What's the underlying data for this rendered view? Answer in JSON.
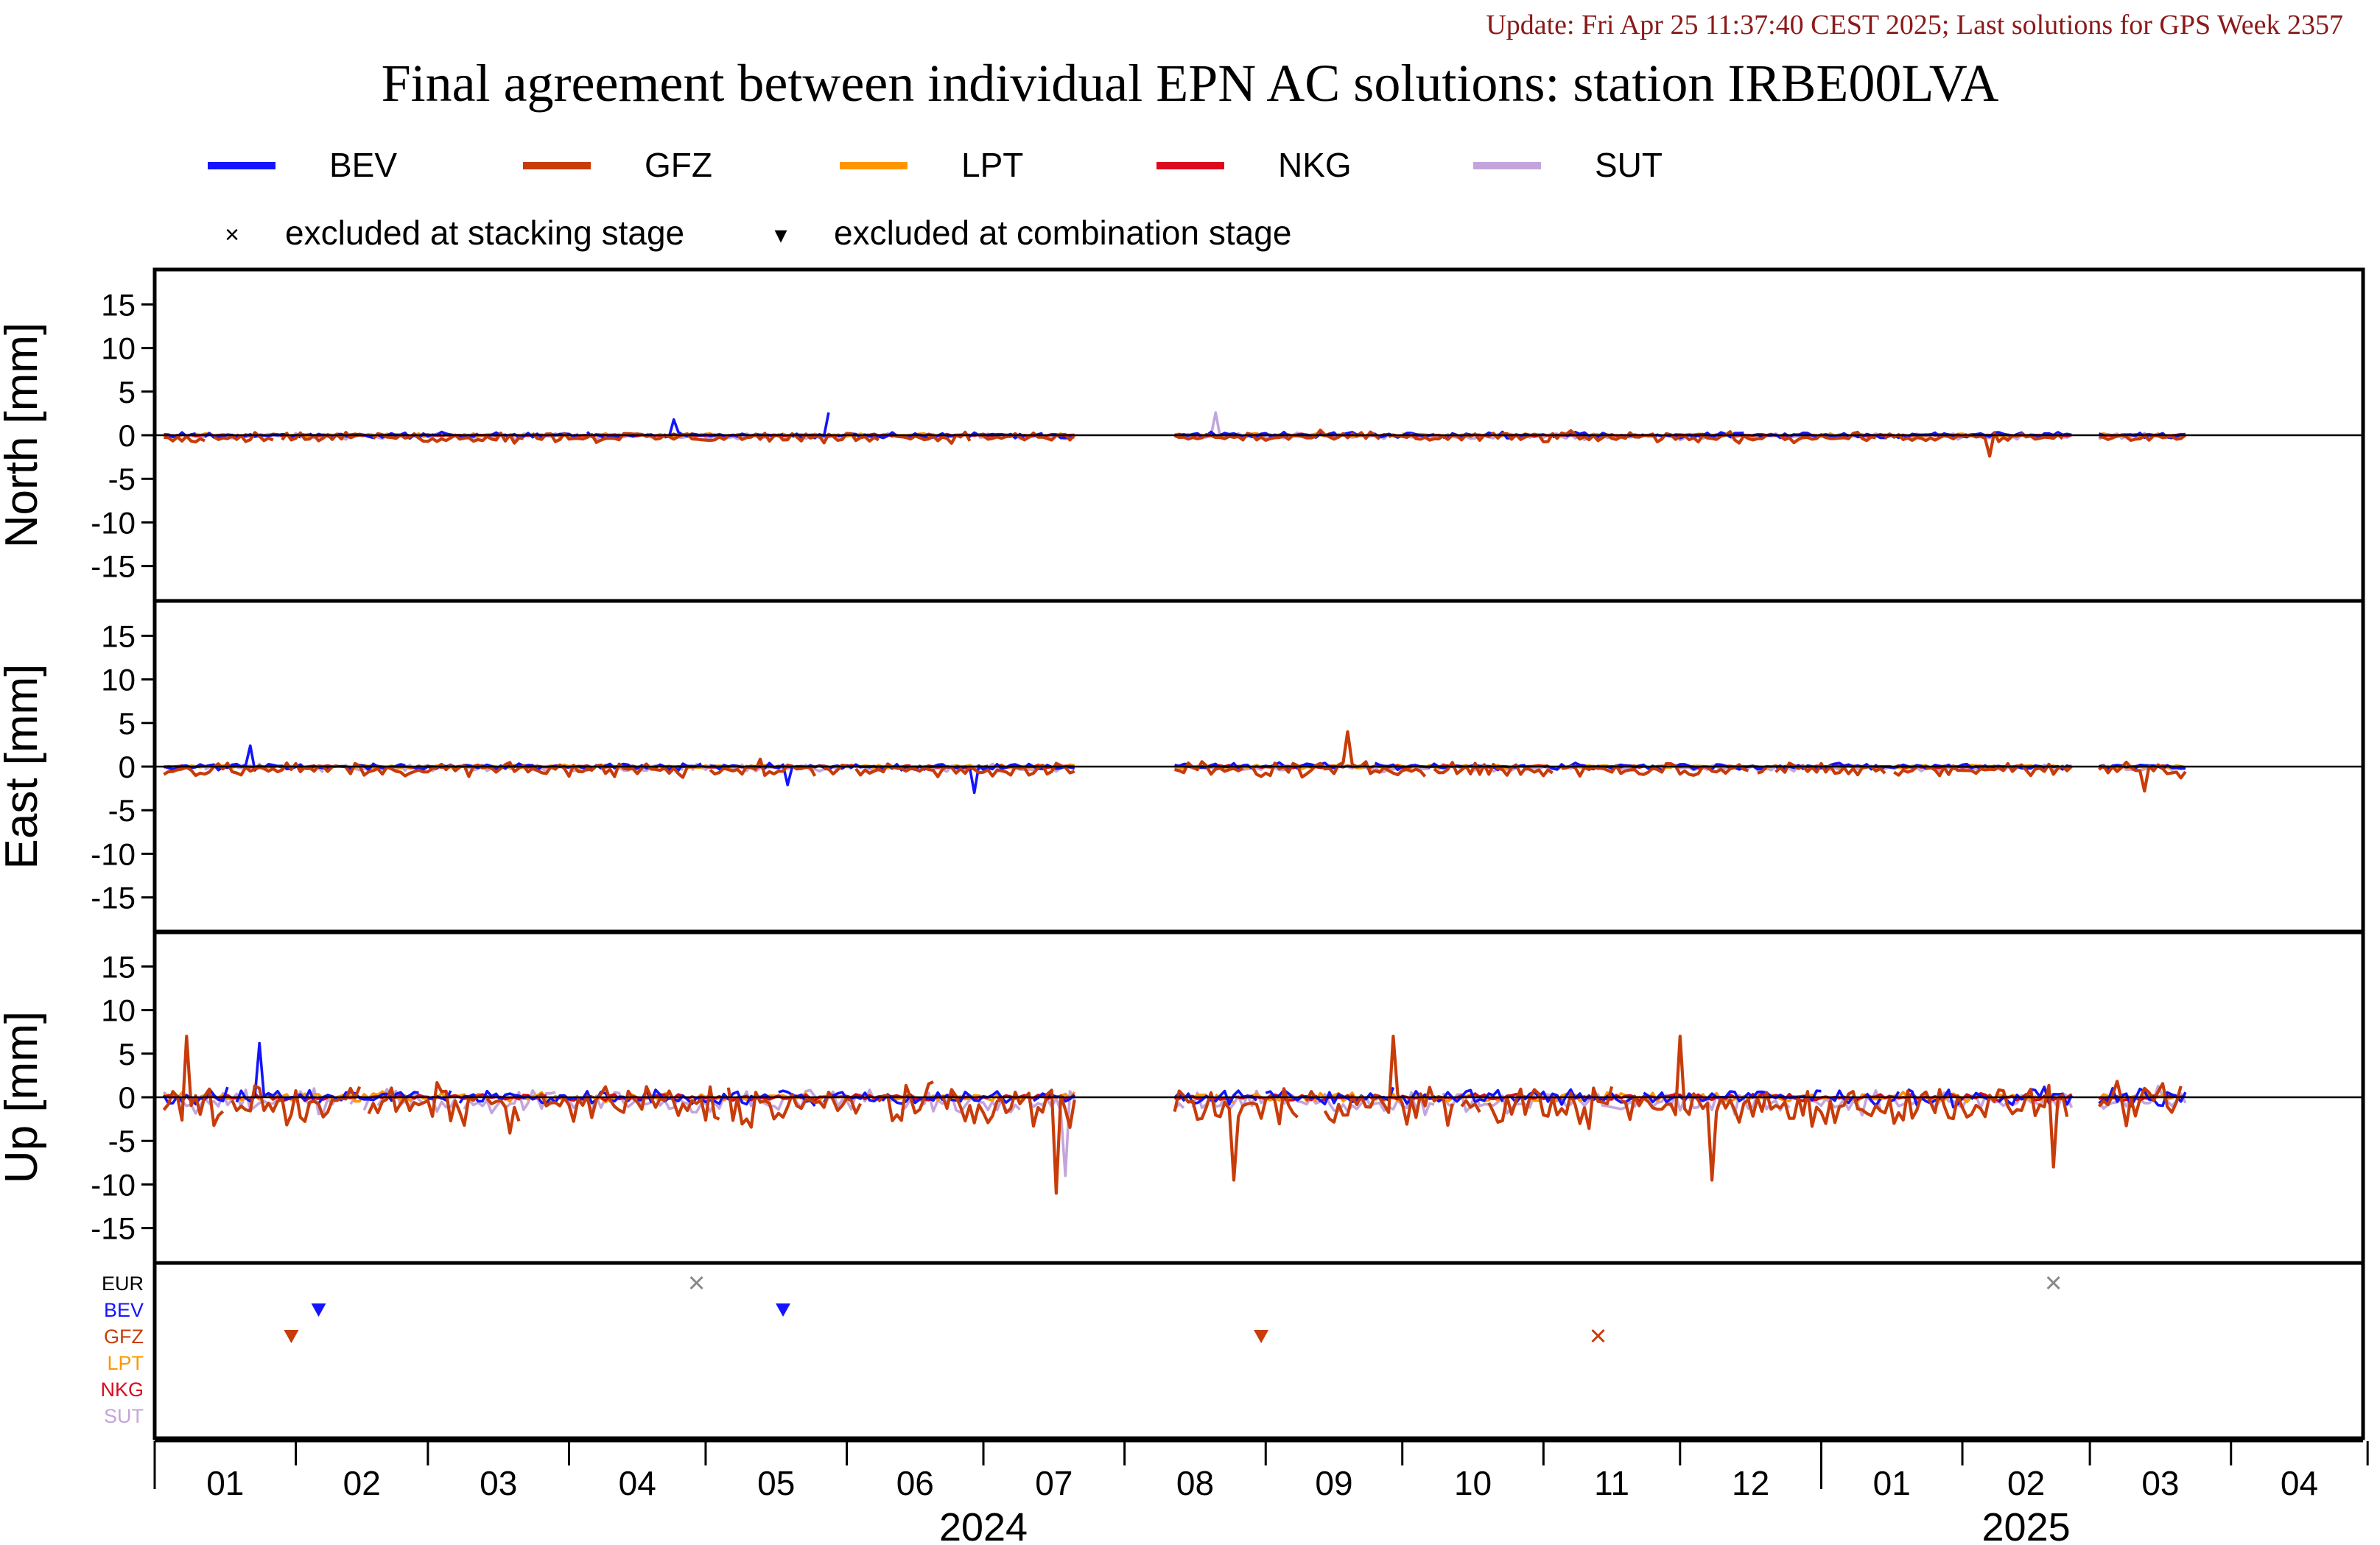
{
  "header": {
    "update_text": "Update: Fri Apr 25 11:37:40 CEST 2025; Last solutions for GPS Week 2357",
    "title": "Final agreement between individual EPN AC solutions: station IRBE00LVA"
  },
  "legend": {
    "series": [
      {
        "name": "BEV",
        "color": "#1414ff"
      },
      {
        "name": "GFZ",
        "color": "#c83c0a"
      },
      {
        "name": "LPT",
        "color": "#ff9600"
      },
      {
        "name": "NKG",
        "color": "#dc0a1e"
      },
      {
        "name": "SUT",
        "color": "#c3a5dc"
      }
    ],
    "markers": [
      {
        "symbol": "×",
        "label": "excluded at stacking stage"
      },
      {
        "symbol": "▾",
        "label": "excluded at combination stage"
      }
    ]
  },
  "chart_data": {
    "type": "line",
    "x_axis": {
      "start": "2024-01-01",
      "end": "2025-04-30",
      "month_labels": [
        "01",
        "02",
        "03",
        "04",
        "05",
        "06",
        "07",
        "08",
        "09",
        "10",
        "11",
        "12",
        "01",
        "02",
        "03",
        "04"
      ],
      "year_labels": [
        {
          "label": "2024",
          "at": "2024-07-01"
        },
        {
          "label": "2025",
          "at": "2025-02-15"
        }
      ]
    },
    "data_gap": [
      "2024-07-21",
      "2024-08-12"
    ],
    "panels": [
      {
        "ylabel": "North [mm]",
        "ylim": [
          -19,
          19
        ],
        "yticks": [
          15,
          10,
          5,
          0,
          -5,
          -10,
          -15
        ],
        "amp": {
          "BEV": 0.5,
          "GFZ": 0.9,
          "LPT": 0.3,
          "NKG": 0.2,
          "SUT": 0.5
        },
        "spikes": [
          {
            "series": "BEV",
            "date": "2024-04-24",
            "value": 1.8
          },
          {
            "series": "BEV",
            "date": "2024-05-28",
            "value": 2.6
          },
          {
            "series": "SUT",
            "date": "2024-08-21",
            "value": 2.6
          },
          {
            "series": "GFZ",
            "date": "2025-02-07",
            "value": -2.4
          }
        ]
      },
      {
        "ylabel": "East [mm]",
        "ylim": [
          -19,
          19
        ],
        "yticks": [
          15,
          10,
          5,
          0,
          -5,
          -10,
          -15
        ],
        "amp": {
          "BEV": 0.6,
          "GFZ": 1.3,
          "LPT": 0.3,
          "NKG": 0.2,
          "SUT": 0.6
        },
        "spikes": [
          {
            "series": "BEV",
            "date": "2024-01-22",
            "value": 2.4
          },
          {
            "series": "BEV",
            "date": "2024-05-19",
            "value": -2.1
          },
          {
            "series": "BEV",
            "date": "2024-06-29",
            "value": -3.0
          },
          {
            "series": "GFZ",
            "date": "2024-09-19",
            "value": 4.0
          },
          {
            "series": "GFZ",
            "date": "2025-03-13",
            "value": -2.8
          }
        ]
      },
      {
        "ylabel": "Up [mm]",
        "ylim": [
          -19,
          19
        ],
        "yticks": [
          15,
          10,
          5,
          0,
          -5,
          -10,
          -15
        ],
        "amp": {
          "BEV": 1.4,
          "GFZ": 3.6,
          "LPT": 0.8,
          "NKG": 0.6,
          "SUT": 2.0
        },
        "spikes": [
          {
            "series": "GFZ",
            "date": "2024-01-08",
            "value": 7.0
          },
          {
            "series": "BEV",
            "date": "2024-01-24",
            "value": 6.2
          },
          {
            "series": "GFZ",
            "date": "2024-07-17",
            "value": -11.0
          },
          {
            "series": "SUT",
            "date": "2024-07-19",
            "value": -9.0
          },
          {
            "series": "GFZ",
            "date": "2024-08-25",
            "value": -9.5
          },
          {
            "series": "GFZ",
            "date": "2024-09-29",
            "value": 7.0
          },
          {
            "series": "GFZ",
            "date": "2024-12-01",
            "value": 7.0
          },
          {
            "series": "GFZ",
            "date": "2024-12-08",
            "value": -9.5
          },
          {
            "series": "GFZ",
            "date": "2025-02-21",
            "value": -8.0
          }
        ]
      }
    ],
    "exclusions": {
      "rows": [
        {
          "name": "EUR",
          "color": "#000000"
        },
        {
          "name": "BEV",
          "color": "#1414ff"
        },
        {
          "name": "GFZ",
          "color": "#c83c0a"
        },
        {
          "name": "LPT",
          "color": "#ff9600"
        },
        {
          "name": "NKG",
          "color": "#dc0a1e"
        },
        {
          "name": "SUT",
          "color": "#c3a5dc"
        }
      ],
      "events": [
        {
          "row": "EUR",
          "marker": "cross",
          "date": "2024-04-29"
        },
        {
          "row": "EUR",
          "marker": "cross",
          "date": "2025-02-21"
        },
        {
          "row": "BEV",
          "marker": "triangle",
          "date": "2024-02-06"
        },
        {
          "row": "BEV",
          "marker": "triangle",
          "date": "2024-05-18"
        },
        {
          "row": "GFZ",
          "marker": "triangle",
          "date": "2024-01-31"
        },
        {
          "row": "GFZ",
          "marker": "triangle",
          "date": "2024-08-31"
        },
        {
          "row": "GFZ",
          "marker": "cross",
          "date": "2024-11-13"
        }
      ]
    }
  }
}
